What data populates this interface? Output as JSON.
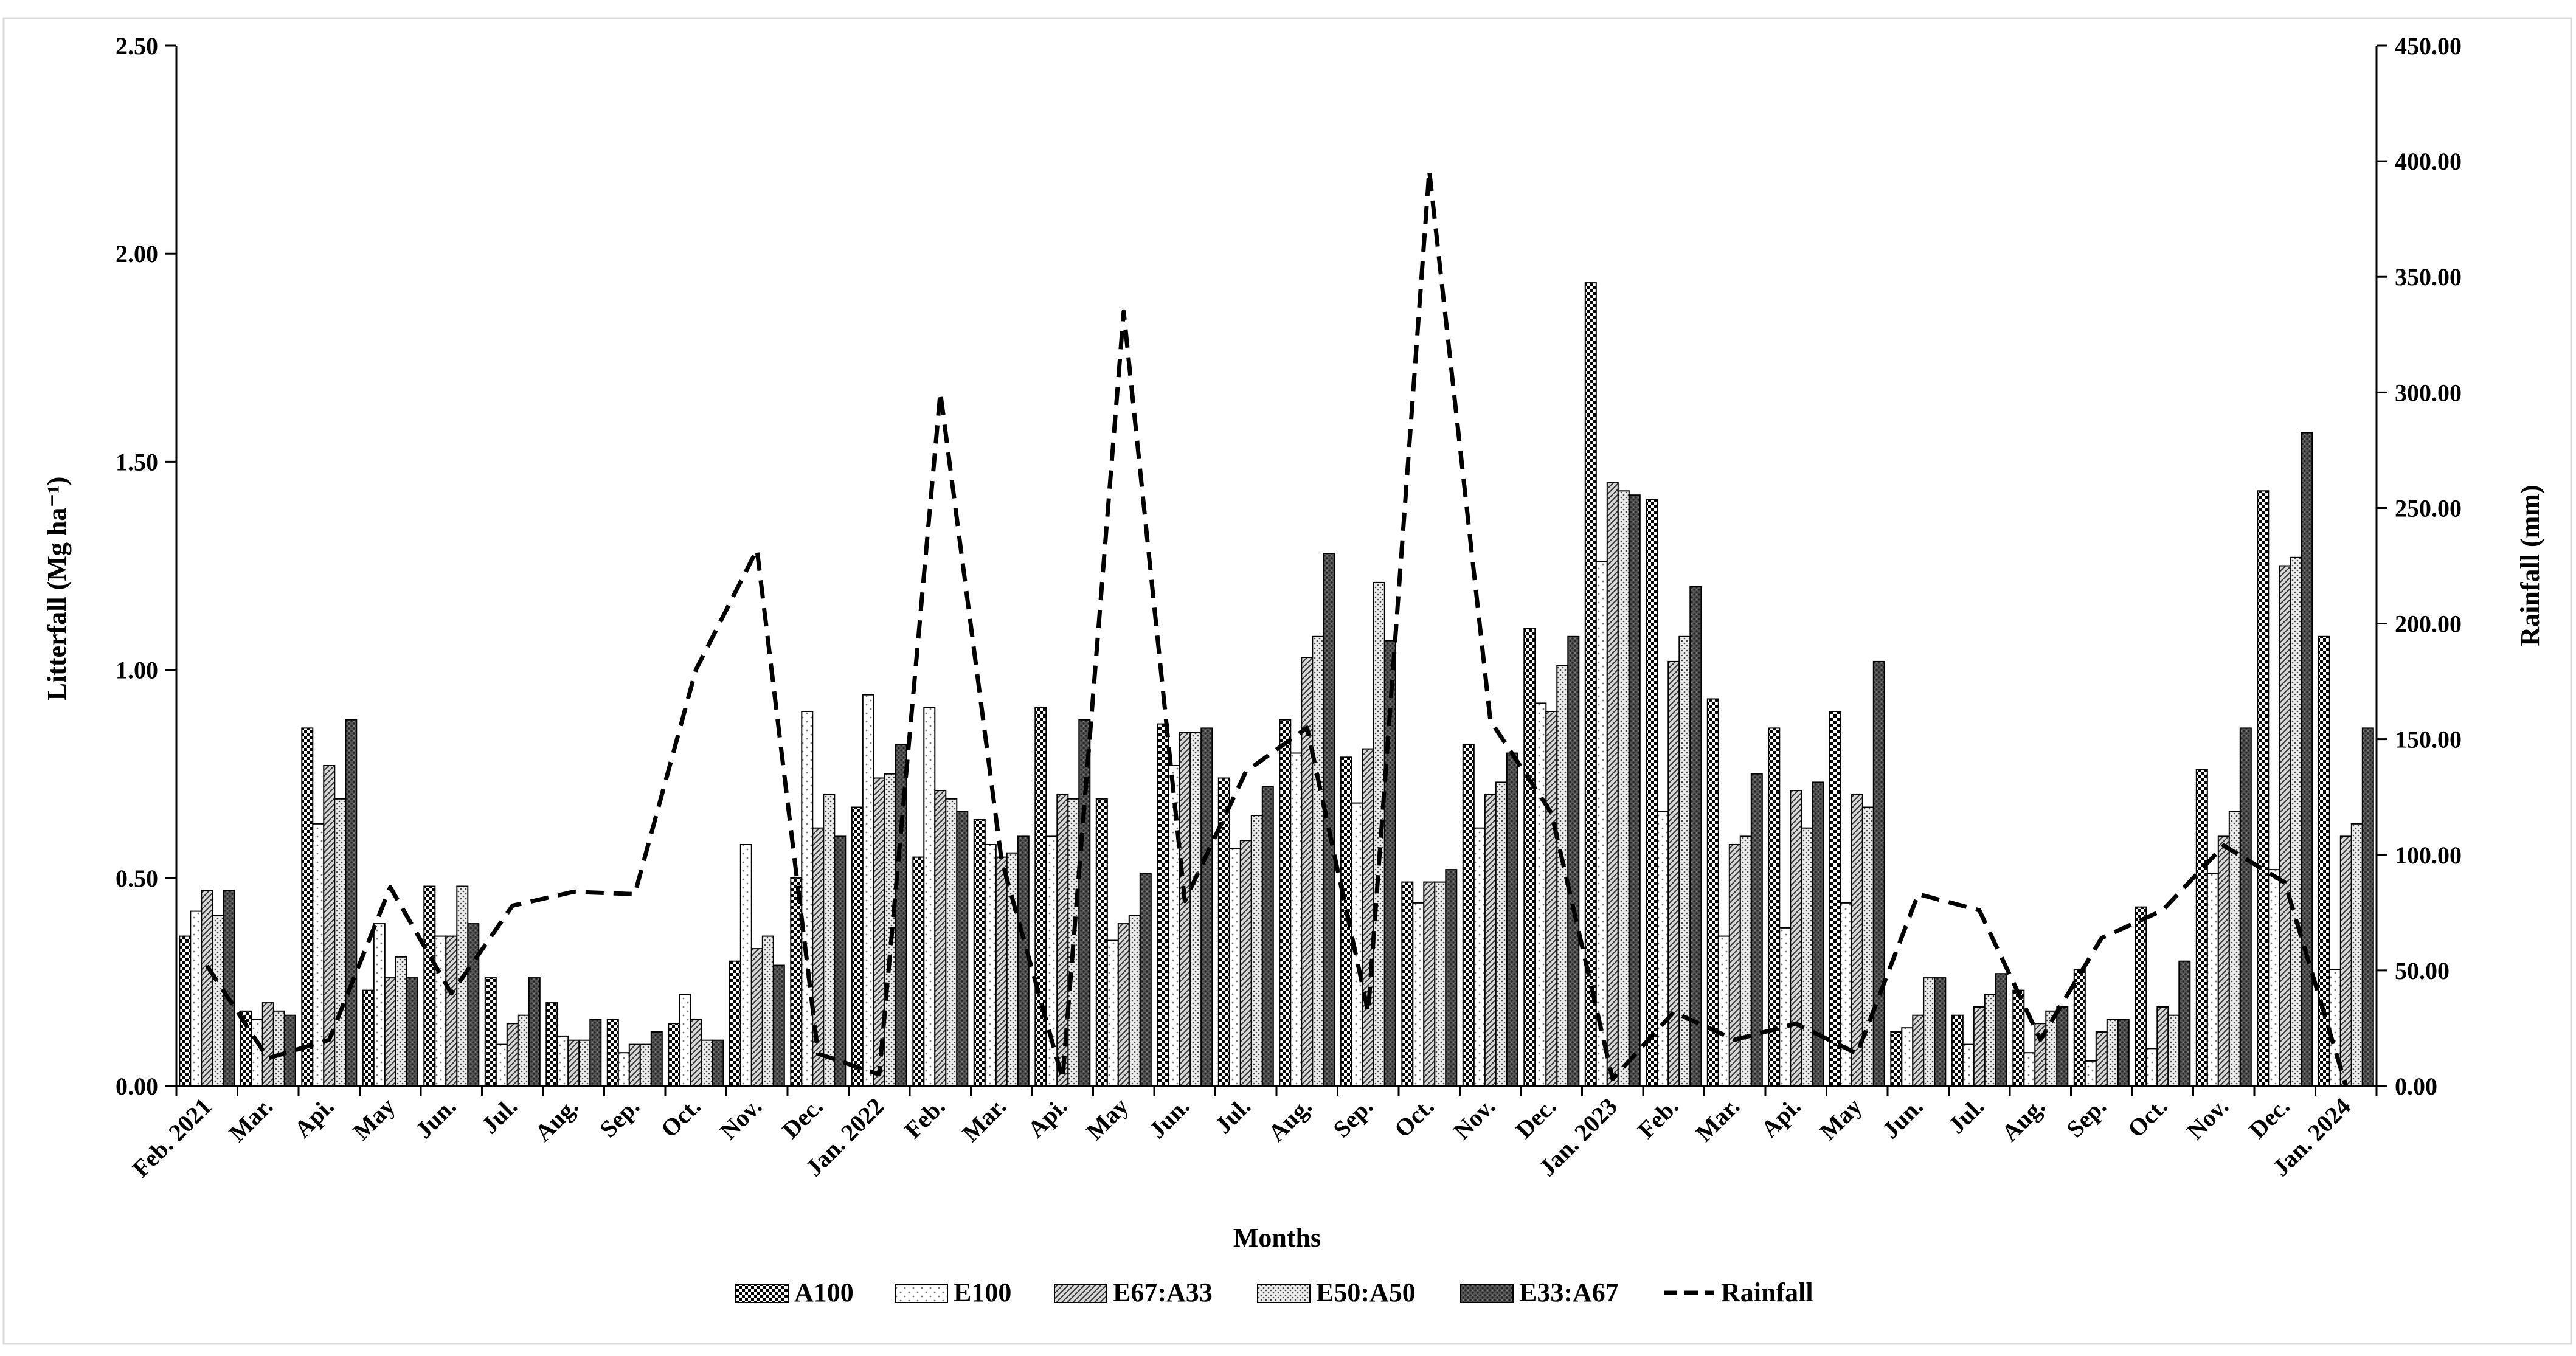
{
  "chart_data": {
    "type": "bar",
    "xlabel": "Months",
    "ylabel_left": "Litterfall (Mg ha⁻¹)",
    "ylabel_right": "Rainfall (mm)",
    "ylim_left": [
      0,
      2.5
    ],
    "ylim_right": [
      0,
      450
    ],
    "yticks_left": [
      "0.00",
      "0.50",
      "1.00",
      "1.50",
      "2.00",
      "2.50"
    ],
    "yticks_right": [
      "0.00",
      "50.00",
      "100.00",
      "150.00",
      "200.00",
      "250.00",
      "300.00",
      "350.00",
      "400.00",
      "450.00"
    ],
    "grid": false,
    "legend_position": "bottom",
    "categories": [
      "Feb. 2021",
      "Mar.",
      "Api.",
      "May",
      "Jun.",
      "Jul.",
      "Aug.",
      "Sep.",
      "Oct.",
      "Nov.",
      "Dec.",
      "Jan. 2022",
      "Feb.",
      "Mar.",
      "Api.",
      "May",
      "Jun.",
      "Jul.",
      "Aug.",
      "Sep.",
      "Oct.",
      "Nov.",
      "Dec.",
      "Jan. 2023",
      "Feb.",
      "Mar.",
      "Api.",
      "May",
      "Jun.",
      "Jul.",
      "Aug.",
      "Sep.",
      "Oct.",
      "Nov.",
      "Dec.",
      "Jan. 2024"
    ],
    "series": [
      {
        "name": "A100",
        "pattern": "checker",
        "values": [
          0.36,
          0.18,
          0.86,
          0.23,
          0.48,
          0.26,
          0.2,
          0.16,
          0.15,
          0.3,
          0.5,
          0.67,
          0.55,
          0.64,
          0.91,
          0.69,
          0.87,
          0.74,
          0.88,
          0.79,
          0.49,
          0.82,
          1.1,
          1.93,
          1.41,
          0.93,
          0.86,
          0.9,
          0.13,
          0.17,
          0.23,
          0.28,
          0.43,
          0.76,
          1.43,
          1.08
        ]
      },
      {
        "name": "E100",
        "pattern": "dots",
        "values": [
          0.42,
          0.16,
          0.63,
          0.39,
          0.36,
          0.1,
          0.12,
          0.08,
          0.22,
          0.58,
          0.9,
          0.94,
          0.91,
          0.58,
          0.6,
          0.35,
          0.77,
          0.57,
          0.8,
          0.68,
          0.44,
          0.62,
          0.92,
          1.26,
          0.66,
          0.36,
          0.38,
          0.44,
          0.14,
          0.1,
          0.08,
          0.06,
          0.09,
          0.51,
          0.52,
          0.28
        ]
      },
      {
        "name": "E67:A33",
        "pattern": "diagonal",
        "values": [
          0.47,
          0.2,
          0.77,
          0.26,
          0.36,
          0.15,
          0.11,
          0.1,
          0.16,
          0.33,
          0.62,
          0.74,
          0.71,
          0.55,
          0.7,
          0.39,
          0.85,
          0.59,
          1.03,
          0.81,
          0.49,
          0.7,
          0.9,
          1.45,
          1.02,
          0.58,
          0.71,
          0.7,
          0.17,
          0.19,
          0.15,
          0.13,
          0.19,
          0.6,
          1.25,
          0.6
        ]
      },
      {
        "name": "E50:A50",
        "pattern": "fine-dots",
        "values": [
          0.41,
          0.18,
          0.69,
          0.31,
          0.48,
          0.17,
          0.11,
          0.1,
          0.11,
          0.36,
          0.7,
          0.75,
          0.69,
          0.56,
          0.69,
          0.41,
          0.85,
          0.65,
          1.08,
          1.21,
          0.49,
          0.73,
          1.01,
          1.43,
          1.08,
          0.6,
          0.62,
          0.67,
          0.26,
          0.22,
          0.18,
          0.16,
          0.17,
          0.66,
          1.27,
          0.63
        ]
      },
      {
        "name": "E33:A67",
        "pattern": "dark",
        "values": [
          0.47,
          0.17,
          0.88,
          0.26,
          0.39,
          0.26,
          0.16,
          0.13,
          0.11,
          0.29,
          0.6,
          0.82,
          0.66,
          0.6,
          0.88,
          0.51,
          0.86,
          0.72,
          1.28,
          1.07,
          0.52,
          0.8,
          1.08,
          1.42,
          1.2,
          0.75,
          0.73,
          1.02,
          0.26,
          0.27,
          0.19,
          0.16,
          0.3,
          0.86,
          1.57,
          0.86
        ]
      }
    ],
    "line_series": {
      "name": "Rainfall",
      "axis": "right",
      "style": "dashed",
      "values": [
        52,
        12,
        20,
        86,
        40,
        78,
        84,
        83,
        180,
        232,
        14,
        5,
        300,
        98,
        3,
        335,
        80,
        136,
        155,
        32,
        396,
        158,
        118,
        3,
        32,
        20,
        27,
        14,
        83,
        76,
        20,
        64,
        76,
        104,
        88,
        0
      ]
    }
  }
}
